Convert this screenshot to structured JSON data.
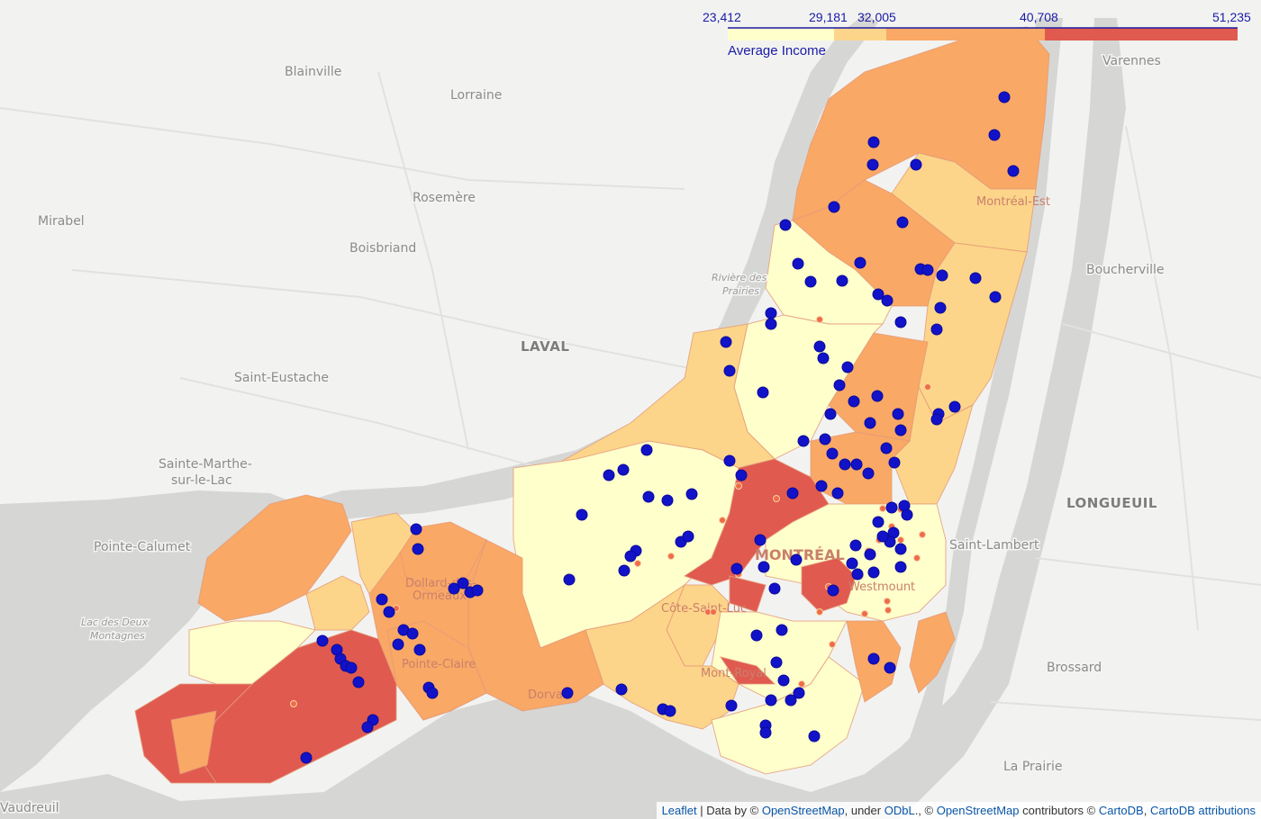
{
  "legend": {
    "caption": "Average Income",
    "thresholds": [
      "23,412",
      "29,181",
      "32,005",
      "40,708",
      "51,235"
    ],
    "colors": [
      "#ffffcc",
      "#fdd58a",
      "#f9a866",
      "#e05a50"
    ]
  },
  "places": [
    {
      "key": "blainville",
      "label": "Blainville"
    },
    {
      "key": "lorraine",
      "label": "Lorraine"
    },
    {
      "key": "rosemere",
      "label": "Rosemère"
    },
    {
      "key": "mirabel",
      "label": "Mirabel"
    },
    {
      "key": "boisbriand",
      "label": "Boisbriand"
    },
    {
      "key": "laval",
      "label": "LAVAL"
    },
    {
      "key": "saint-eustache",
      "label": "Saint-Eustache"
    },
    {
      "key": "sainte-marthe-1",
      "label": "Sainte-Marthe-"
    },
    {
      "key": "sainte-marthe-2",
      "label": "sur-le-Lac"
    },
    {
      "key": "pointe-calumet",
      "label": "Pointe-Calumet"
    },
    {
      "key": "lac-deux-montagnes-1",
      "label": "Lac des Deux"
    },
    {
      "key": "lac-deux-montagnes-2",
      "label": "Montagnes"
    },
    {
      "key": "vaudreuil",
      "label": "Vaudreuil"
    },
    {
      "key": "varennes",
      "label": "Varennes"
    },
    {
      "key": "boucherville",
      "label": "Boucherville"
    },
    {
      "key": "longueuil",
      "label": "LONGUEUIL"
    },
    {
      "key": "saint-lambert",
      "label": "Saint-Lambert"
    },
    {
      "key": "brossard",
      "label": "Brossard"
    },
    {
      "key": "la-prairie",
      "label": "La Prairie"
    },
    {
      "key": "riviere-prairies-1",
      "label": "Rivière des"
    },
    {
      "key": "riviere-prairies-2",
      "label": "Prairies"
    },
    {
      "key": "montreal-est",
      "label": "Montréal-Est"
    },
    {
      "key": "montreal",
      "label": "MONTRÉAL"
    },
    {
      "key": "dollard",
      "label": "Dollard-des-"
    },
    {
      "key": "ormeaux",
      "label": "Ormeaux"
    },
    {
      "key": "pointe-claire",
      "label": "Pointe-Claire"
    },
    {
      "key": "dorval",
      "label": "Dorval"
    },
    {
      "key": "cote-saint-luc",
      "label": "Côte-Saint-Luc"
    },
    {
      "key": "mont-royal",
      "label": "Mont-Royal"
    },
    {
      "key": "westmount",
      "label": "Westmount"
    }
  ],
  "attribution": {
    "leaflet": "Leaflet",
    "sep": " | Data by © ",
    "osm": "OpenStreetMap",
    "mid": ", under ",
    "odbl": "ODbL",
    "mid2": "., © ",
    "osmc": "OpenStreetMap",
    "mid3": " contributors © ",
    "carto": "CartoDB",
    "mid4": ", ",
    "carto2": "CartoDB attributions"
  }
}
